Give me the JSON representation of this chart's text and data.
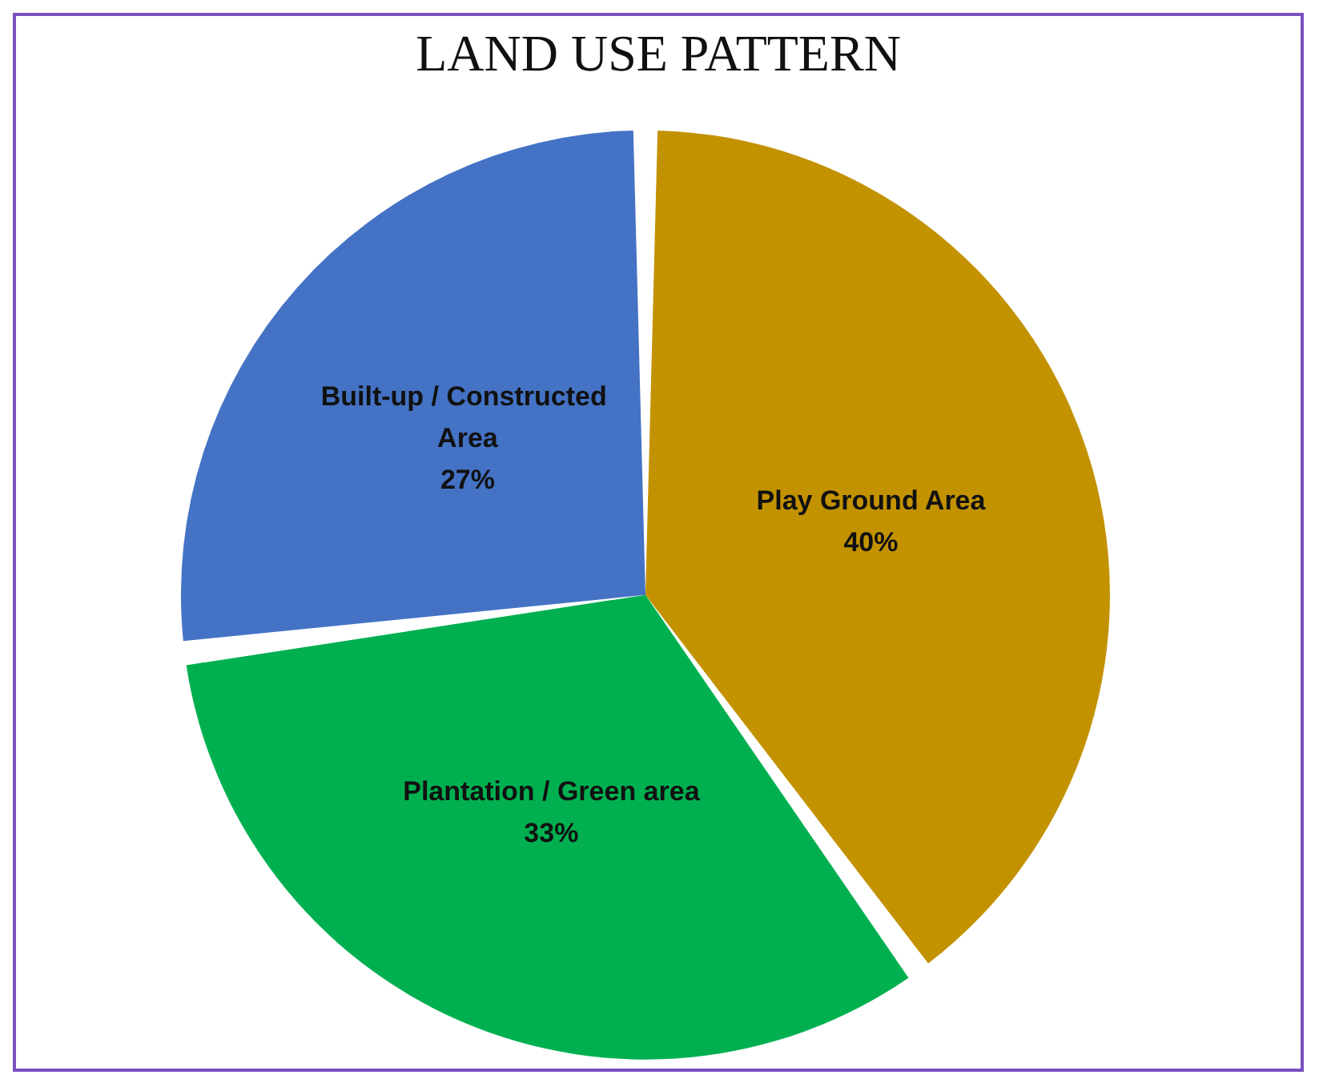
{
  "chart_data": {
    "type": "pie",
    "title": "LAND USE PATTERN",
    "categories": [
      "Play Ground Area",
      "Plantation / Green area",
      "Built-up / Constructed Area"
    ],
    "values": [
      40,
      33,
      27
    ],
    "value_labels": [
      "40%",
      "33%",
      "27%"
    ],
    "colors": [
      "#c39200",
      "#00b050",
      "#4472c4"
    ],
    "legend": false
  }
}
